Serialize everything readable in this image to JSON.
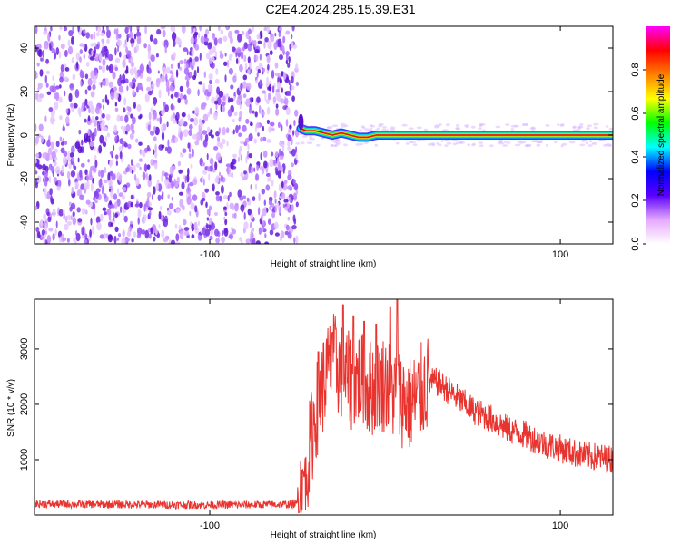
{
  "title": "C2E4.2024.285.15.39.E31",
  "colors": {
    "snr_line": "#e8332e",
    "scatter_purple": "#6a1fd0",
    "ridge_red": "#e01010"
  },
  "chart_data": [
    {
      "type": "heatmap",
      "title": "C2E4.2024.285.15.39.E31",
      "xlabel": "Height of straight line (km)",
      "ylabel": "Frequency (Hz)",
      "xlim": [
        -200,
        130
      ],
      "ylim": [
        -50,
        50
      ],
      "xticks": [
        -100,
        100
      ],
      "yticks": [
        -40,
        -20,
        0,
        20,
        40
      ],
      "xtick_labels": [
        "-100",
        "100"
      ],
      "ytick_labels": [
        "-40",
        "-20",
        "0",
        "20",
        "40"
      ],
      "noise_region_x": [
        -200,
        -50
      ],
      "ridge": {
        "x_start": -50,
        "x_end": 130,
        "frequency_hz": 0,
        "points": [
          [
            -48,
            3
          ],
          [
            -45,
            2
          ],
          [
            -40,
            2
          ],
          [
            -35,
            1
          ],
          [
            -30,
            0
          ],
          [
            -25,
            1
          ],
          [
            -20,
            0
          ],
          [
            -15,
            -1
          ],
          [
            -10,
            -1
          ],
          [
            -5,
            0
          ],
          [
            0,
            0
          ],
          [
            10,
            0
          ],
          [
            50,
            0
          ],
          [
            100,
            0
          ],
          [
            130,
            0
          ]
        ]
      },
      "colorbar": {
        "label": "Normalized spectral amplitude",
        "range": [
          0,
          1
        ],
        "ticks": [
          "0.0",
          "0.2",
          "0.4",
          "0.6",
          "0.8"
        ],
        "tick_values": [
          0,
          0.2,
          0.4,
          0.6,
          0.8
        ],
        "colors": [
          "#ffffff",
          "#e6a8ff",
          "#5a00ff",
          "#0000ff",
          "#00ffff",
          "#00ff00",
          "#ffff00",
          "#ff8000",
          "#ff0000",
          "#ff00ff"
        ]
      }
    },
    {
      "type": "line",
      "xlabel": "Height of straight line (km)",
      "ylabel": "SNR (10 * v/v)",
      "xlim": [
        -200,
        130
      ],
      "ylim": [
        0,
        3900
      ],
      "xticks": [
        -100,
        100
      ],
      "yticks": [
        1000,
        2000,
        3000
      ],
      "xtick_labels": [
        "-100",
        "100"
      ],
      "ytick_labels": [
        "1000",
        "2000",
        "3000"
      ],
      "series": [
        {
          "x": [
            -200,
            -150,
            -100,
            -60,
            -50,
            -45,
            -40,
            -35,
            -30,
            -25,
            -20,
            -15,
            -10,
            -5,
            0,
            5,
            10,
            15,
            20,
            25,
            30,
            40,
            50,
            60,
            70,
            80,
            90,
            100,
            110,
            120,
            130
          ],
          "y": [
            200,
            190,
            180,
            190,
            200,
            800,
            1800,
            2400,
            2800,
            2600,
            2400,
            2500,
            2300,
            2300,
            2400,
            2200,
            2100,
            2000,
            2200,
            2400,
            2400,
            2150,
            1900,
            1750,
            1550,
            1450,
            1300,
            1200,
            1100,
            1050,
            1000
          ],
          "spikes": [
            [
              -38,
              2950
            ],
            [
              -30,
              3300
            ],
            [
              -24,
              3800
            ],
            [
              -18,
              3600
            ],
            [
              -12,
              3500
            ],
            [
              -5,
              3450
            ],
            [
              3,
              3750
            ],
            [
              7,
              3900
            ]
          ]
        }
      ]
    }
  ]
}
